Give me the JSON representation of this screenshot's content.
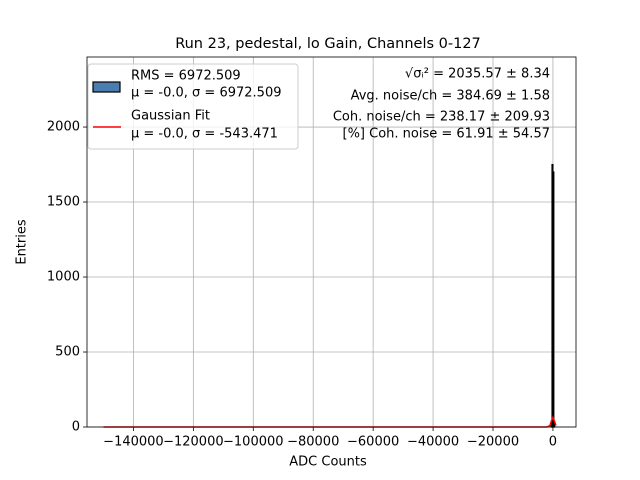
{
  "chart_data": {
    "type": "histogram",
    "title": "Run 23, pedestal, lo Gain, Channels 0-127",
    "xlabel": "ADC Counts",
    "ylabel": "Entries",
    "bins": [
      -600,
      -300,
      0,
      300,
      600
    ],
    "values": [
      40,
      1750,
      1700,
      30
    ],
    "color": "#4a7eb0",
    "edge_color": "#000000",
    "legend_label": [
      "RMS = 6972.509",
      "μ = -0.0, σ = 6972.509"
    ],
    "fit": {
      "type": "line",
      "name": [
        "Gaussian Fit",
        "μ = -0.0, σ = -543.471"
      ],
      "color": "#ff0000",
      "x": [
        -150000,
        -2000,
        -1000,
        -500,
        0,
        500,
        1000
      ],
      "values": [
        0,
        0,
        10,
        40,
        65,
        40,
        10
      ]
    },
    "annotations": [
      "√σᵢ² = 2035.57 ± 8.34",
      "Avg. noise/ch = 384.69 ± 1.58",
      "Coh. noise/ch = 238.17 ± 209.93",
      "[%] Coh. noise = 61.91 ± 54.57"
    ],
    "xlim": [
      -155500,
      7700
    ],
    "ylim": [
      0,
      2467
    ],
    "xticks": [
      {
        "value": -140000,
        "label": "−140000"
      },
      {
        "value": -120000,
        "label": "−120000"
      },
      {
        "value": -100000,
        "label": "−100000"
      },
      {
        "value": -80000,
        "label": "−80000"
      },
      {
        "value": -60000,
        "label": "−60000"
      },
      {
        "value": -40000,
        "label": "−40000"
      },
      {
        "value": -20000,
        "label": "−20000"
      },
      0
    ],
    "yticks": [
      0,
      500,
      1000,
      1500,
      2000
    ],
    "grid": true,
    "legend": "upper left"
  }
}
